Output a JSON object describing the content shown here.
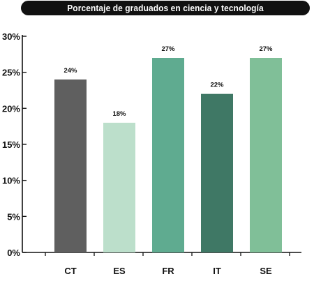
{
  "chart_data": {
    "type": "bar",
    "title": "Porcentaje de graduados en ciencia y tecnología",
    "categories": [
      "CT",
      "ES",
      "FR",
      "IT",
      "SE"
    ],
    "values": [
      24,
      18,
      27,
      22,
      27
    ],
    "data_labels": [
      "24%",
      "18%",
      "27%",
      "22%",
      "27%"
    ],
    "colors": [
      "#5f5f5f",
      "#bcdfcb",
      "#5fab90",
      "#3f7865",
      "#80bf98"
    ],
    "ylim": [
      0,
      30
    ],
    "yticks": [
      0,
      5,
      10,
      15,
      20,
      25,
      30
    ],
    "ytick_labels": [
      "0%",
      "5%",
      "10%",
      "15%",
      "20%",
      "25%",
      "30%"
    ],
    "grid": false,
    "legend": "none"
  }
}
